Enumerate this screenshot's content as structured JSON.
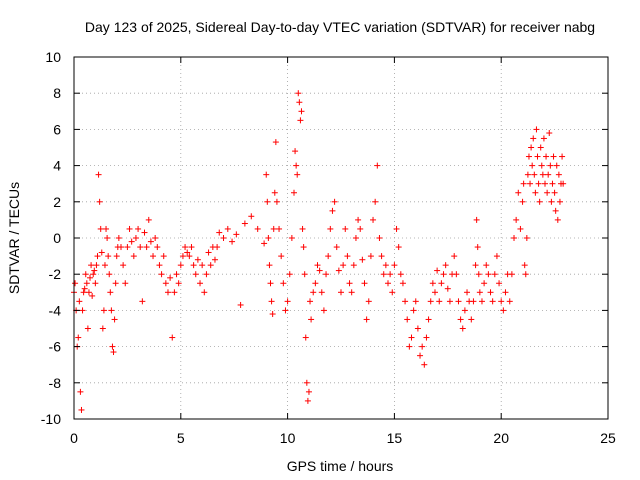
{
  "chart_data": {
    "type": "scatter",
    "title": "Day 123 of 2025, Sidereal Day-to-day VTEC variation (SDTVAR) for receiver nabg",
    "xlabel": "GPS time / hours",
    "ylabel": "SDTVAR / TECUs",
    "xlim": [
      0,
      25
    ],
    "ylim": [
      -10,
      10
    ],
    "xticks": [
      0,
      5,
      10,
      15,
      20,
      25
    ],
    "yticks": [
      -10,
      -8,
      -6,
      -4,
      -2,
      0,
      2,
      4,
      6,
      8,
      10
    ],
    "grid": true,
    "marker": "+",
    "color": "#ff0000",
    "series": [
      {
        "name": "SDTVAR",
        "points": [
          [
            0.0,
            -3.0
          ],
          [
            0.05,
            -2.5
          ],
          [
            0.1,
            -4.0
          ],
          [
            0.15,
            -6.0
          ],
          [
            0.2,
            -5.5
          ],
          [
            0.25,
            -3.5
          ],
          [
            0.3,
            -8.5
          ],
          [
            0.35,
            -9.5
          ],
          [
            0.4,
            -4.0
          ],
          [
            0.45,
            -3.0
          ],
          [
            0.5,
            -2.8
          ],
          [
            0.55,
            -2.0
          ],
          [
            0.6,
            -2.5
          ],
          [
            0.65,
            -5.0
          ],
          [
            0.7,
            -3.0
          ],
          [
            0.75,
            -2.2
          ],
          [
            0.8,
            -1.5
          ],
          [
            0.85,
            -3.2
          ],
          [
            0.9,
            -2.0
          ],
          [
            0.95,
            -1.8
          ],
          [
            1.0,
            -2.5
          ],
          [
            1.05,
            -1.5
          ],
          [
            1.1,
            -1.0
          ],
          [
            1.15,
            3.5
          ],
          [
            1.2,
            2.0
          ],
          [
            1.25,
            0.5
          ],
          [
            1.3,
            -0.8
          ],
          [
            1.35,
            -5.0
          ],
          [
            1.4,
            -4.0
          ],
          [
            1.45,
            -1.5
          ],
          [
            1.5,
            0.5
          ],
          [
            1.55,
            0.0
          ],
          [
            1.6,
            -1.0
          ],
          [
            1.65,
            -2.0
          ],
          [
            1.7,
            -3.0
          ],
          [
            1.75,
            -4.0
          ],
          [
            1.8,
            -6.0
          ],
          [
            1.85,
            -6.3
          ],
          [
            1.9,
            -4.5
          ],
          [
            1.95,
            -2.5
          ],
          [
            2.0,
            -1.0
          ],
          [
            2.05,
            -0.5
          ],
          [
            2.1,
            0.0
          ],
          [
            2.2,
            -0.5
          ],
          [
            2.3,
            -1.5
          ],
          [
            2.4,
            -2.5
          ],
          [
            2.5,
            -0.5
          ],
          [
            2.6,
            0.5
          ],
          [
            2.7,
            -0.2
          ],
          [
            2.8,
            -1.0
          ],
          [
            2.9,
            0.0
          ],
          [
            3.0,
            0.5
          ],
          [
            3.1,
            -0.5
          ],
          [
            3.2,
            -3.5
          ],
          [
            3.3,
            0.3
          ],
          [
            3.4,
            -0.5
          ],
          [
            3.5,
            1.0
          ],
          [
            3.6,
            -0.2
          ],
          [
            3.7,
            -1.0
          ],
          [
            3.8,
            0.0
          ],
          [
            3.9,
            -0.5
          ],
          [
            4.0,
            -1.5
          ],
          [
            4.1,
            -2.0
          ],
          [
            4.2,
            -1.0
          ],
          [
            4.3,
            -2.5
          ],
          [
            4.4,
            -3.0
          ],
          [
            4.5,
            -2.2
          ],
          [
            4.6,
            -5.5
          ],
          [
            4.7,
            -3.0
          ],
          [
            4.8,
            -2.0
          ],
          [
            4.9,
            -2.5
          ],
          [
            5.0,
            -1.5
          ],
          [
            5.1,
            -1.0
          ],
          [
            5.2,
            -0.5
          ],
          [
            5.3,
            -0.8
          ],
          [
            5.4,
            -1.0
          ],
          [
            5.5,
            -0.5
          ],
          [
            5.6,
            -1.5
          ],
          [
            5.7,
            -2.0
          ],
          [
            5.8,
            -1.2
          ],
          [
            5.9,
            -2.5
          ],
          [
            6.0,
            -1.5
          ],
          [
            6.1,
            -3.0
          ],
          [
            6.2,
            -2.0
          ],
          [
            6.3,
            -0.8
          ],
          [
            6.4,
            -1.5
          ],
          [
            6.5,
            -0.5
          ],
          [
            6.6,
            -1.2
          ],
          [
            6.7,
            -0.5
          ],
          [
            6.8,
            0.3
          ],
          [
            7.0,
            0.0
          ],
          [
            7.2,
            0.5
          ],
          [
            7.4,
            -0.2
          ],
          [
            7.6,
            0.2
          ],
          [
            7.8,
            -3.7
          ],
          [
            8.0,
            0.8
          ],
          [
            8.3,
            1.2
          ],
          [
            8.6,
            0.5
          ],
          [
            8.9,
            -0.3
          ],
          [
            9.0,
            3.5
          ],
          [
            9.05,
            2.0
          ],
          [
            9.1,
            0.0
          ],
          [
            9.15,
            -1.5
          ],
          [
            9.2,
            -2.5
          ],
          [
            9.25,
            -3.5
          ],
          [
            9.3,
            -4.2
          ],
          [
            9.35,
            0.5
          ],
          [
            9.4,
            2.5
          ],
          [
            9.45,
            5.3
          ],
          [
            9.5,
            2.0
          ],
          [
            9.6,
            0.5
          ],
          [
            9.7,
            -1.0
          ],
          [
            9.8,
            -2.5
          ],
          [
            9.9,
            -4.0
          ],
          [
            10.0,
            -3.5
          ],
          [
            10.1,
            -2.0
          ],
          [
            10.2,
            0.0
          ],
          [
            10.3,
            2.5
          ],
          [
            10.35,
            4.8
          ],
          [
            10.4,
            4.0
          ],
          [
            10.45,
            3.5
          ],
          [
            10.5,
            8.0
          ],
          [
            10.55,
            7.5
          ],
          [
            10.6,
            6.5
          ],
          [
            10.65,
            7.0
          ],
          [
            10.7,
            0.5
          ],
          [
            10.75,
            -0.5
          ],
          [
            10.8,
            -2.0
          ],
          [
            10.85,
            -5.5
          ],
          [
            10.9,
            -8.0
          ],
          [
            10.95,
            -9.0
          ],
          [
            11.0,
            -8.5
          ],
          [
            11.05,
            -3.5
          ],
          [
            11.1,
            -4.5
          ],
          [
            11.2,
            -3.0
          ],
          [
            11.3,
            -2.5
          ],
          [
            11.4,
            -1.5
          ],
          [
            11.5,
            -1.8
          ],
          [
            11.6,
            -3.0
          ],
          [
            11.7,
            -4.0
          ],
          [
            11.8,
            -2.0
          ],
          [
            11.9,
            -1.0
          ],
          [
            12.0,
            0.5
          ],
          [
            12.1,
            1.5
          ],
          [
            12.2,
            2.0
          ],
          [
            12.3,
            -0.5
          ],
          [
            12.4,
            -1.8
          ],
          [
            12.5,
            -3.0
          ],
          [
            12.6,
            -1.5
          ],
          [
            12.7,
            0.5
          ],
          [
            12.8,
            -1.0
          ],
          [
            12.9,
            -2.5
          ],
          [
            13.0,
            -3.0
          ],
          [
            13.1,
            -1.5
          ],
          [
            13.2,
            0.0
          ],
          [
            13.3,
            1.0
          ],
          [
            13.4,
            0.5
          ],
          [
            13.5,
            -1.2
          ],
          [
            13.6,
            -2.5
          ],
          [
            13.7,
            -4.5
          ],
          [
            13.8,
            -3.5
          ],
          [
            13.9,
            -1.0
          ],
          [
            14.0,
            1.0
          ],
          [
            14.1,
            2.0
          ],
          [
            14.2,
            4.0
          ],
          [
            14.3,
            0.0
          ],
          [
            14.4,
            -1.0
          ],
          [
            14.5,
            -2.0
          ],
          [
            14.6,
            -1.5
          ],
          [
            14.7,
            -2.5
          ],
          [
            14.8,
            -2.0
          ],
          [
            14.9,
            -3.0
          ],
          [
            15.0,
            -1.5
          ],
          [
            15.1,
            0.5
          ],
          [
            15.2,
            -0.5
          ],
          [
            15.3,
            -2.0
          ],
          [
            15.4,
            -2.5
          ],
          [
            15.5,
            -3.5
          ],
          [
            15.6,
            -4.5
          ],
          [
            15.7,
            -6.0
          ],
          [
            15.8,
            -5.5
          ],
          [
            15.9,
            -4.0
          ],
          [
            16.0,
            -3.5
          ],
          [
            16.1,
            -5.0
          ],
          [
            16.2,
            -6.5
          ],
          [
            16.3,
            -6.0
          ],
          [
            16.4,
            -7.0
          ],
          [
            16.5,
            -5.5
          ],
          [
            16.6,
            -4.5
          ],
          [
            16.7,
            -3.5
          ],
          [
            16.8,
            -2.5
          ],
          [
            16.9,
            -3.0
          ],
          [
            17.0,
            -1.8
          ],
          [
            17.1,
            -3.5
          ],
          [
            17.2,
            -2.5
          ],
          [
            17.3,
            -2.0
          ],
          [
            17.4,
            -1.5
          ],
          [
            17.5,
            -2.8
          ],
          [
            17.6,
            -3.5
          ],
          [
            17.7,
            -2.0
          ],
          [
            17.8,
            -1.0
          ],
          [
            17.9,
            -2.0
          ],
          [
            18.0,
            -3.5
          ],
          [
            18.1,
            -4.5
          ],
          [
            18.2,
            -5.0
          ],
          [
            18.3,
            -4.0
          ],
          [
            18.4,
            -3.0
          ],
          [
            18.5,
            -3.5
          ],
          [
            18.6,
            -4.5
          ],
          [
            18.7,
            -3.5
          ],
          [
            18.8,
            -1.5
          ],
          [
            18.85,
            1.0
          ],
          [
            18.9,
            -0.5
          ],
          [
            18.95,
            -2.0
          ],
          [
            19.0,
            -3.0
          ],
          [
            19.1,
            -3.5
          ],
          [
            19.2,
            -2.5
          ],
          [
            19.3,
            -1.5
          ],
          [
            19.4,
            -2.0
          ],
          [
            19.5,
            -3.0
          ],
          [
            19.6,
            -3.5
          ],
          [
            19.7,
            -2.0
          ],
          [
            19.8,
            -1.0
          ],
          [
            19.9,
            -2.5
          ],
          [
            20.0,
            -3.5
          ],
          [
            20.1,
            -4.0
          ],
          [
            20.2,
            -3.0
          ],
          [
            20.3,
            -2.0
          ],
          [
            20.4,
            -3.5
          ],
          [
            20.5,
            -2.0
          ],
          [
            20.6,
            0.0
          ],
          [
            20.7,
            1.0
          ],
          [
            20.8,
            2.5
          ],
          [
            20.9,
            0.5
          ],
          [
            21.0,
            2.0
          ],
          [
            21.05,
            3.0
          ],
          [
            21.1,
            -1.5
          ],
          [
            21.15,
            -2.0
          ],
          [
            21.2,
            0.0
          ],
          [
            21.25,
            3.5
          ],
          [
            21.3,
            4.5
          ],
          [
            21.35,
            3.0
          ],
          [
            21.4,
            5.0
          ],
          [
            21.45,
            4.0
          ],
          [
            21.5,
            5.5
          ],
          [
            21.55,
            3.5
          ],
          [
            21.6,
            2.5
          ],
          [
            21.65,
            6.0
          ],
          [
            21.7,
            4.5
          ],
          [
            21.75,
            3.0
          ],
          [
            21.8,
            2.0
          ],
          [
            21.85,
            5.0
          ],
          [
            21.9,
            4.0
          ],
          [
            21.95,
            3.5
          ],
          [
            22.0,
            5.5
          ],
          [
            22.05,
            3.0
          ],
          [
            22.1,
            4.5
          ],
          [
            22.15,
            2.5
          ],
          [
            22.2,
            3.5
          ],
          [
            22.25,
            5.8
          ],
          [
            22.3,
            4.0
          ],
          [
            22.35,
            2.0
          ],
          [
            22.4,
            3.0
          ],
          [
            22.45,
            4.5
          ],
          [
            22.5,
            2.5
          ],
          [
            22.55,
            1.5
          ],
          [
            22.6,
            4.0
          ],
          [
            22.65,
            1.0
          ],
          [
            22.7,
            3.5
          ],
          [
            22.75,
            2.0
          ],
          [
            22.8,
            3.0
          ],
          [
            22.85,
            4.5
          ],
          [
            22.9,
            3.0
          ]
        ]
      }
    ]
  }
}
